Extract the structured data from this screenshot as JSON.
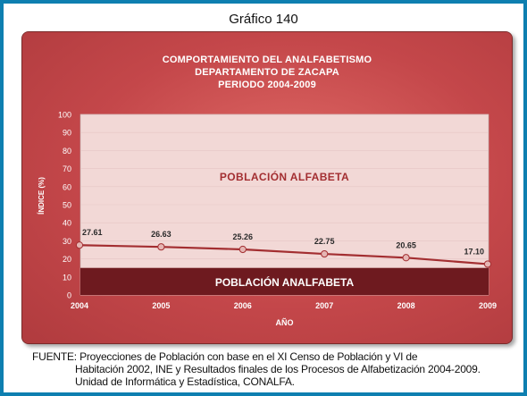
{
  "figure_caption": "Gráfico 140",
  "colors": {
    "frame_border": "#0e7fb0",
    "panel": "#c5484c",
    "plot_area": "#f2d8d6",
    "band_analfabeta": "#6e1a1f",
    "line": "#a32e31",
    "text_alfabeta": "#a32e31"
  },
  "chart_data": {
    "type": "line",
    "title_lines": [
      "COMPORTAMIENTO DEL ANALFABETISMO",
      "DEPARTAMENTO DE ZACAPA",
      "PERIODO 2004-2009"
    ],
    "xlabel": "AÑO",
    "ylabel": "ÍNDICE (%)",
    "ylim": [
      0,
      100
    ],
    "yticks": [
      0,
      10,
      20,
      30,
      40,
      50,
      60,
      70,
      80,
      90,
      100
    ],
    "categories": [
      "2004",
      "2005",
      "2006",
      "2007",
      "2008",
      "2009"
    ],
    "values": [
      27.61,
      26.63,
      25.26,
      22.75,
      20.65,
      17.1
    ],
    "value_labels": [
      "27.61",
      "26.63",
      "25.26",
      "22.75",
      "20.65",
      "17.10"
    ],
    "band_label": "POBLACIÓN ANALFABETA",
    "area_label": "POBLACIÓN ALFABETA",
    "band_range": [
      0,
      15
    ]
  },
  "footer": {
    "line1": "FUENTE: Proyecciones de Población con base en el XI Censo de Población y VI de",
    "line2": "Habitación 2002, INE y Resultados finales de los Procesos de Alfabetización 2004-2009.",
    "line3": "Unidad de Informática y Estadística, CONALFA."
  }
}
